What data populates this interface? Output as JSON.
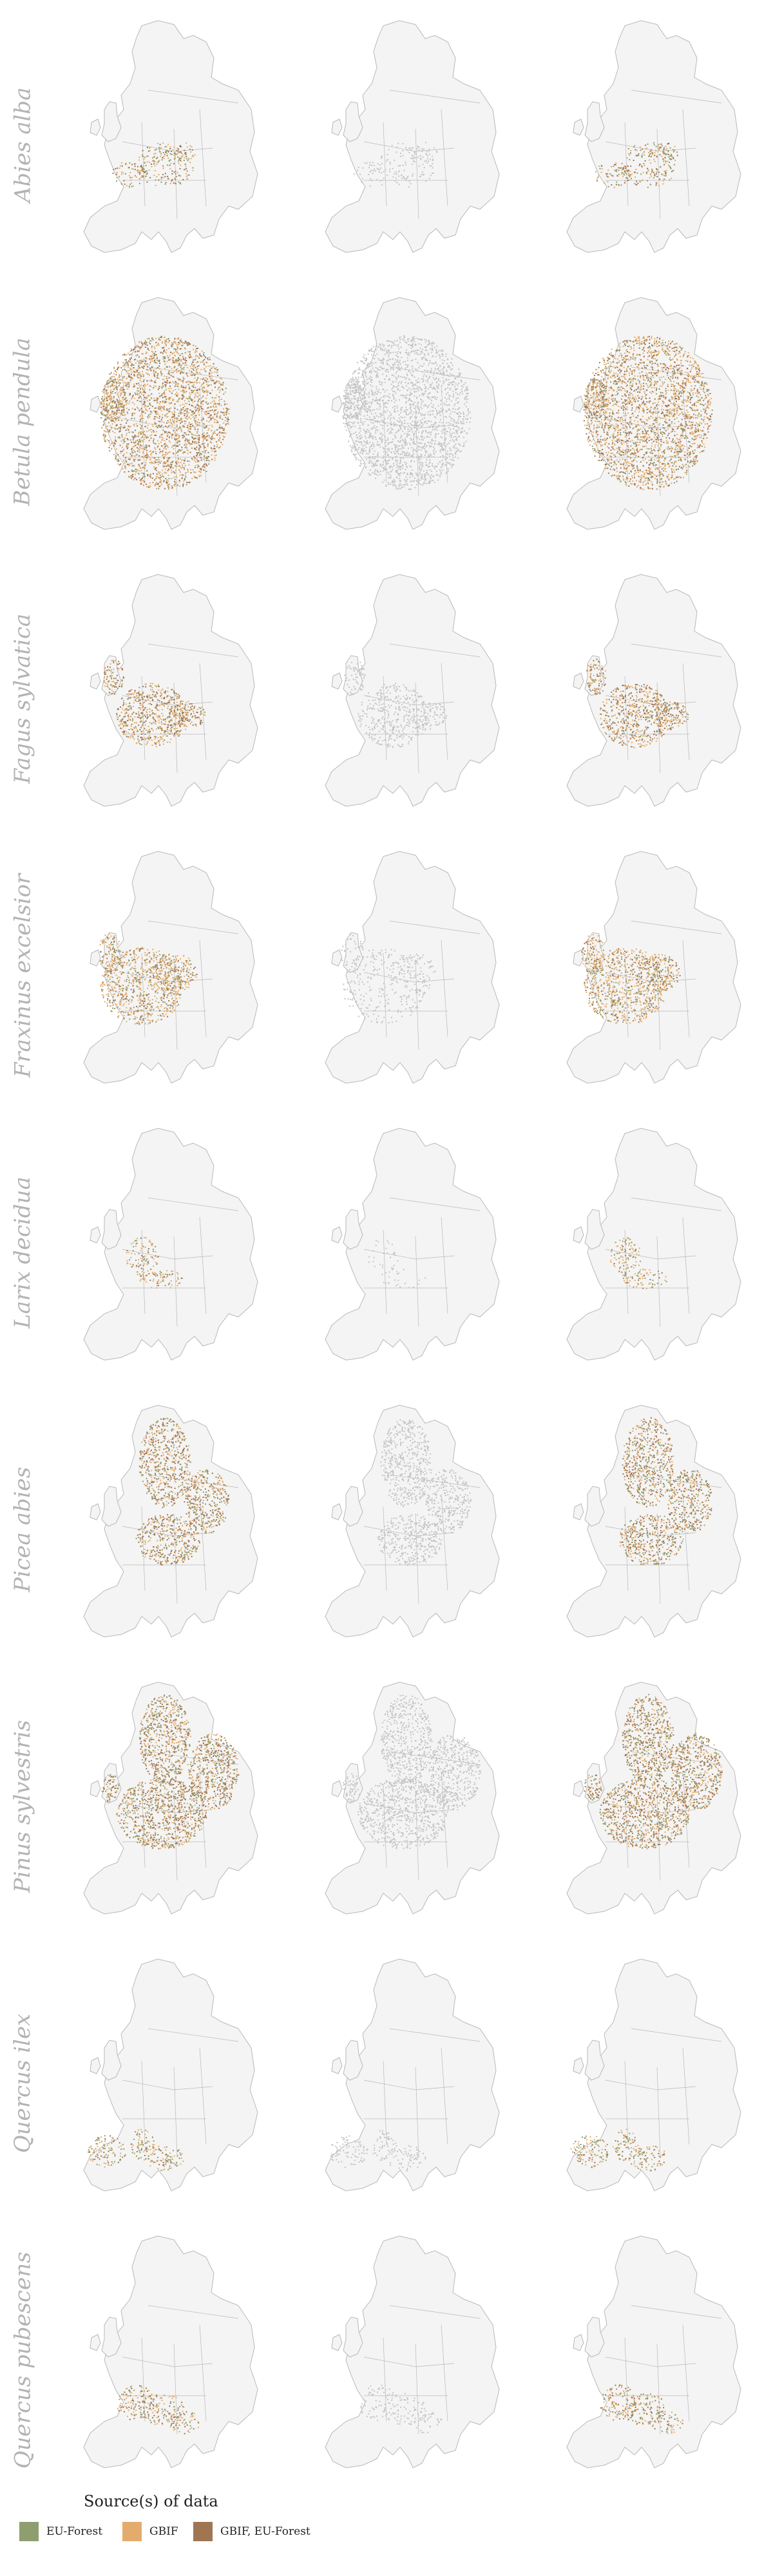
{
  "colors": {
    "eu_forest": "#8f9e6f",
    "gbif": "#e3ac6c",
    "both": "#9f7552",
    "grey_only": "#c4c4c4",
    "land": "#f4f4f4",
    "border": "#b8b8b8"
  },
  "panel_columns": [
    "observations by source",
    "grey distribution",
    "observations by source"
  ],
  "species": [
    {
      "name": "Abies alba",
      "range": "central",
      "grey_density": 0.35,
      "gbif_density": 0.35,
      "eu_density": 0.25,
      "both_density": 0.25
    },
    {
      "name": "Betula pendula",
      "range": "widespread",
      "grey_density": 0.95,
      "gbif_density": 0.85,
      "eu_density": 0.25,
      "both_density": 0.45
    },
    {
      "name": "Fagus sylvatica",
      "range": "central-west",
      "grey_density": 0.7,
      "gbif_density": 0.75,
      "eu_density": 0.2,
      "both_density": 0.55
    },
    {
      "name": "Fraxinus excelsior",
      "range": "west-central",
      "grey_density": 0.35,
      "gbif_density": 0.85,
      "eu_density": 0.25,
      "both_density": 0.3
    },
    {
      "name": "Larix decidua",
      "range": "alpine",
      "grey_density": 0.2,
      "gbif_density": 0.55,
      "eu_density": 0.3,
      "both_density": 0.15
    },
    {
      "name": "Picea abies",
      "range": "north-central",
      "grey_density": 0.9,
      "gbif_density": 0.55,
      "eu_density": 0.35,
      "both_density": 0.6
    },
    {
      "name": "Pinus sylvestris",
      "range": "north-widespread",
      "grey_density": 0.95,
      "gbif_density": 0.6,
      "eu_density": 0.4,
      "both_density": 0.65
    },
    {
      "name": "Quercus ilex",
      "range": "mediterranean",
      "grey_density": 0.55,
      "gbif_density": 0.5,
      "eu_density": 0.4,
      "both_density": 0.2
    },
    {
      "name": "Quercus pubescens",
      "range": "south-central",
      "grey_density": 0.4,
      "gbif_density": 0.45,
      "eu_density": 0.25,
      "both_density": 0.3
    }
  ],
  "legend": {
    "title": "Source(s) of data",
    "items": [
      {
        "label": "EU-Forest",
        "color": "#8f9e6f"
      },
      {
        "label": "GBIF",
        "color": "#e3ac6c"
      },
      {
        "label": "GBIF, EU-Forest",
        "color": "#9f7552"
      }
    ]
  }
}
